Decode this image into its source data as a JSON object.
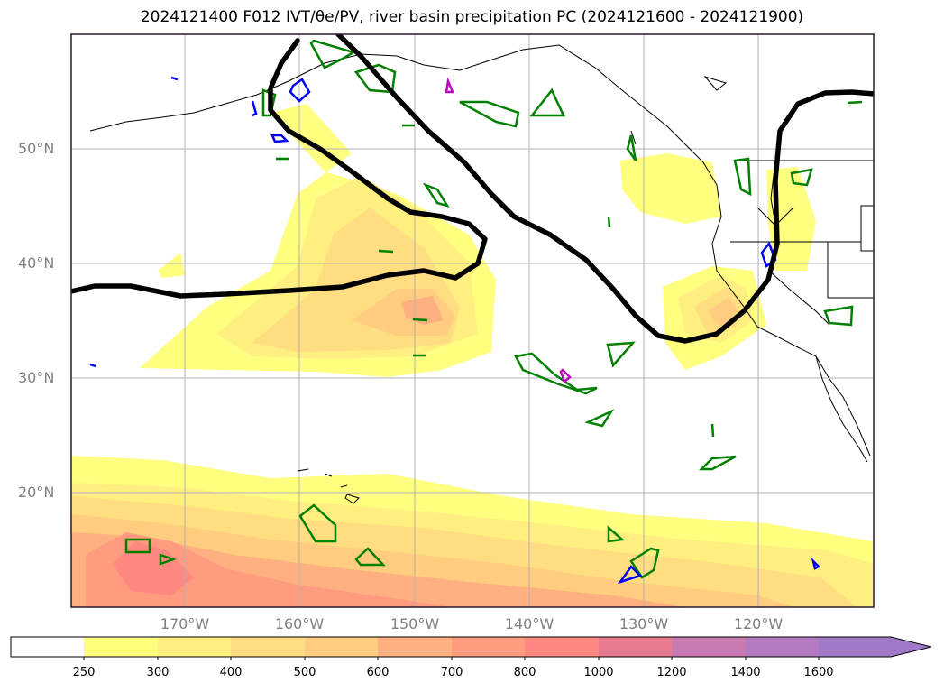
{
  "title": "2024121400 F012 IVT/θe/PV, river basin precipitation PC (2024121600 - 2024121900)",
  "map": {
    "lat_labels": [
      "50°N",
      "40°N",
      "30°N",
      "20°N"
    ],
    "lon_labels": [
      "170°W",
      "160°W",
      "150°W",
      "140°W",
      "130°W",
      "120°W"
    ],
    "gridlines": true,
    "colors": {
      "frame": "#2a1a2a",
      "grid": "#b0b0b0",
      "coast": "#000000",
      "theta_e_contour": "#000000",
      "pv_contour_green": "#008000",
      "pv_contour_blue": "#0000ff",
      "pv_contour_magenta": "#c000c0"
    }
  },
  "colorbar": {
    "labels": [
      "250",
      "300",
      "400",
      "500",
      "600",
      "700",
      "800",
      "1000",
      "1200",
      "1400",
      "1600"
    ],
    "colors": [
      "#ffffff",
      "#ffff80",
      "#ffee80",
      "#ffdd80",
      "#ffcc80",
      "#ffb080",
      "#ff9c80",
      "#ff8880",
      "#e87a90",
      "#c87ab0",
      "#b47ac0",
      "#a07ac8"
    ],
    "extend": "max"
  }
}
